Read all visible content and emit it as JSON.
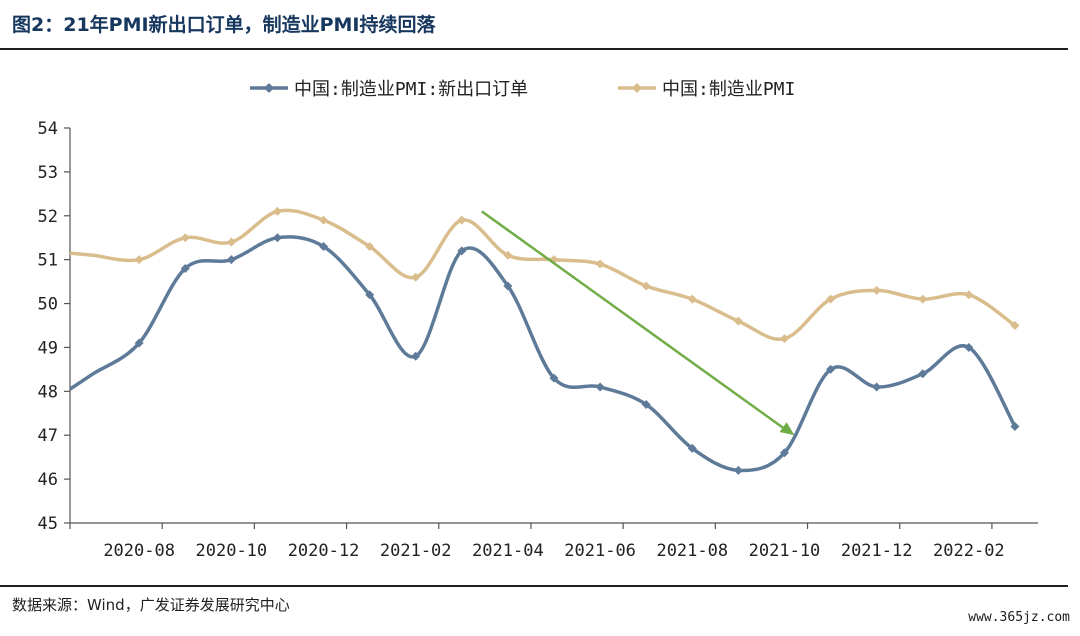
{
  "header": {
    "title": "图2：21年PMI新出口订单，制造业PMI持续回落"
  },
  "footer": {
    "source": "数据来源：Wind，广发证券发展研究中心",
    "watermark": "www.365jz.com"
  },
  "chart_data": {
    "type": "line",
    "title": "",
    "xlabel": "",
    "ylabel": "",
    "ylim": [
      45,
      54
    ],
    "yticks": [
      45,
      46,
      47,
      48,
      49,
      50,
      51,
      52,
      53,
      54
    ],
    "x": [
      "2020-07",
      "2020-08",
      "2020-09",
      "2020-10",
      "2020-11",
      "2020-12",
      "2021-01",
      "2021-02",
      "2021-03",
      "2021-04",
      "2021-05",
      "2021-06",
      "2021-07",
      "2021-08",
      "2021-09",
      "2021-10",
      "2021-11",
      "2021-12",
      "2022-01",
      "2022-02",
      "2022-03"
    ],
    "xtick_labels": [
      "2020-08",
      "2020-10",
      "2020-12",
      "2021-02",
      "2021-04",
      "2021-06",
      "2021-08",
      "2021-10",
      "2021-12",
      "2022-02"
    ],
    "legend": "top",
    "grid": false,
    "series": [
      {
        "name": "中国:制造业PMI:新出口订单",
        "color": "#5e7a99",
        "values": [
          48.4,
          49.1,
          50.8,
          51.0,
          51.5,
          51.3,
          50.2,
          48.8,
          51.2,
          50.4,
          48.3,
          48.1,
          47.7,
          46.7,
          46.2,
          46.6,
          48.5,
          48.1,
          48.4,
          49.0,
          47.2
        ]
      },
      {
        "name": "中国:制造业PMI",
        "color": "#d9bd8c",
        "values": [
          51.1,
          51.0,
          51.5,
          51.4,
          52.1,
          51.9,
          51.3,
          50.6,
          51.9,
          51.1,
          51.0,
          50.9,
          50.4,
          50.1,
          49.6,
          49.2,
          50.1,
          50.3,
          50.1,
          50.2,
          49.5
        ]
      }
    ],
    "annotations": [
      {
        "type": "arrow",
        "color": "#70ad47",
        "from": {
          "x": "2021-03",
          "y": 52.1
        },
        "to": {
          "x": "2021-10",
          "y": 47.0
        }
      }
    ]
  }
}
